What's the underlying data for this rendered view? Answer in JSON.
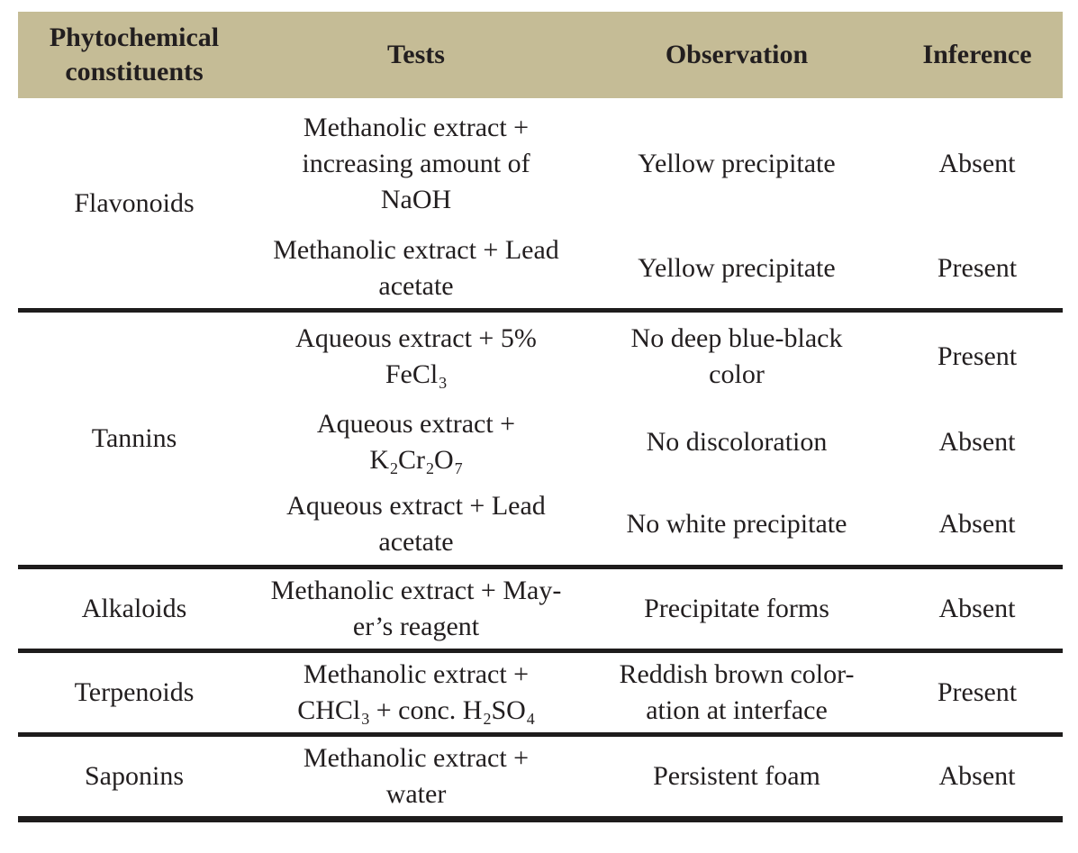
{
  "colors": {
    "header_bg": "#c5bc96",
    "rule": "#1e1c1c",
    "text": "#221e1f"
  },
  "table": {
    "columns": [
      "Phytochemical constituents",
      "Tests",
      "Observation",
      "Inference"
    ],
    "sections": [
      {
        "constituent": "Flavonoids",
        "entries": [
          {
            "test": [
              [
                {
                  "t": "Methanolic extract +"
                }
              ],
              [
                {
                  "t": "increasing amount of"
                }
              ],
              [
                {
                  "t": "NaOH"
                }
              ]
            ],
            "observation": [
              [
                {
                  "t": "Yellow precipitate"
                }
              ]
            ],
            "inference": "Absent"
          },
          {
            "test": [
              [
                {
                  "t": "Methanolic extract + Lead"
                }
              ],
              [
                {
                  "t": "acetate"
                }
              ]
            ],
            "observation": [
              [
                {
                  "t": "Yellow precipitate"
                }
              ]
            ],
            "inference": "Present"
          }
        ]
      },
      {
        "constituent": "Tannins",
        "entries": [
          {
            "test": [
              [
                {
                  "t": "Aqueous extract + 5%"
                }
              ],
              [
                {
                  "t": "FeCl"
                },
                {
                  "t": "3",
                  "sub": true
                }
              ]
            ],
            "observation": [
              [
                {
                  "t": "No deep blue-black"
                }
              ],
              [
                {
                  "t": "color"
                }
              ]
            ],
            "inference": "Present"
          },
          {
            "test": [
              [
                {
                  "t": "Aqueous extract +"
                }
              ],
              [
                {
                  "t": "K"
                },
                {
                  "t": "2",
                  "sub": true
                },
                {
                  "t": "Cr"
                },
                {
                  "t": "2",
                  "sub": true
                },
                {
                  "t": "O"
                },
                {
                  "t": "7",
                  "sub": true
                }
              ]
            ],
            "observation": [
              [
                {
                  "t": "No discoloration"
                }
              ]
            ],
            "inference": "Absent"
          },
          {
            "test": [
              [
                {
                  "t": "Aqueous extract + Lead"
                }
              ],
              [
                {
                  "t": "acetate"
                }
              ]
            ],
            "observation": [
              [
                {
                  "t": "No white precipitate"
                }
              ]
            ],
            "inference": "Absent"
          }
        ]
      },
      {
        "constituent": "Alkaloids",
        "entries": [
          {
            "test": [
              [
                {
                  "t": "Methanolic extract + May-"
                }
              ],
              [
                {
                  "t": "er’s reagent"
                }
              ]
            ],
            "observation": [
              [
                {
                  "t": "Precipitate forms"
                }
              ]
            ],
            "inference": "Absent"
          }
        ]
      },
      {
        "constituent": "Terpenoids",
        "entries": [
          {
            "test": [
              [
                {
                  "t": "Methanolic extract +"
                }
              ],
              [
                {
                  "t": "CHCl"
                },
                {
                  "t": "3",
                  "sub": true
                },
                {
                  "t": " + conc. H"
                },
                {
                  "t": "2",
                  "sub": true
                },
                {
                  "t": "SO"
                },
                {
                  "t": "4",
                  "sub": true
                }
              ]
            ],
            "observation": [
              [
                {
                  "t": "Reddish brown color-"
                }
              ],
              [
                {
                  "t": "ation at interface"
                }
              ]
            ],
            "inference": "Present"
          }
        ]
      },
      {
        "constituent": "Saponins",
        "entries": [
          {
            "test": [
              [
                {
                  "t": "Methanolic extract +"
                }
              ],
              [
                {
                  "t": "water"
                }
              ]
            ],
            "observation": [
              [
                {
                  "t": "Persistent foam"
                }
              ]
            ],
            "inference": "Absent"
          }
        ]
      }
    ]
  }
}
